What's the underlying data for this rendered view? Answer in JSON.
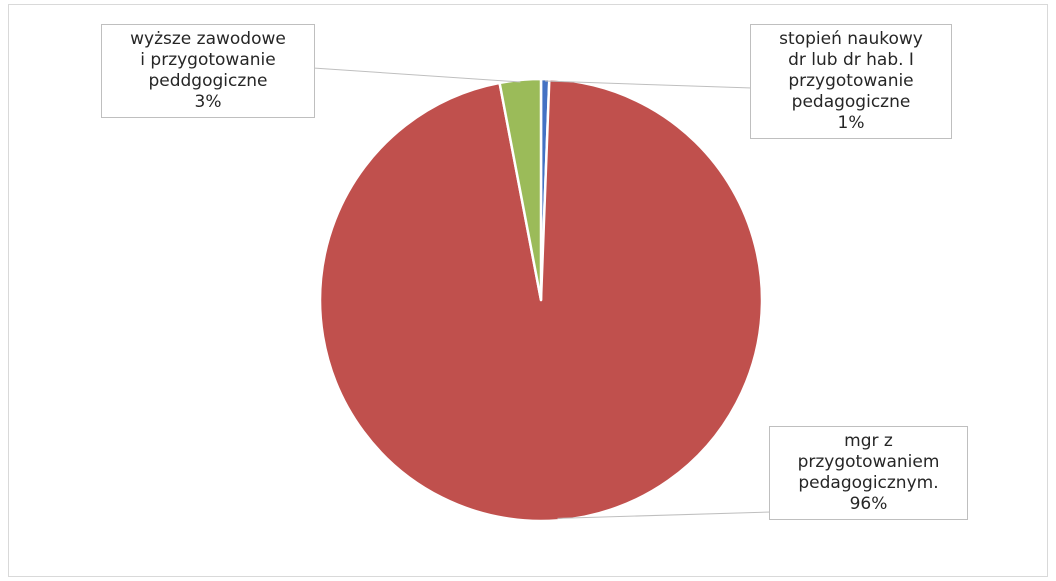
{
  "chart_data": {
    "type": "pie",
    "title": "",
    "start_angle_deg": 0,
    "direction": "clockwise",
    "slices": [
      {
        "label": "stopień naukowy\ndr lub dr hab. I\nprzygotowanie\npedagogiczne",
        "percent_label": "1%",
        "value": 0.6,
        "color": "#4472c4"
      },
      {
        "label": "mgr z\nprzygotowaniem\npedagogicznym.",
        "percent_label": "96%",
        "value": 96.4,
        "color": "#c0504d"
      },
      {
        "label": "wyższe zawodowe\ni przygotowanie\npeddgogiczne",
        "percent_label": "3%",
        "value": 3.0,
        "color": "#9bbb59"
      }
    ],
    "legend": "none"
  }
}
